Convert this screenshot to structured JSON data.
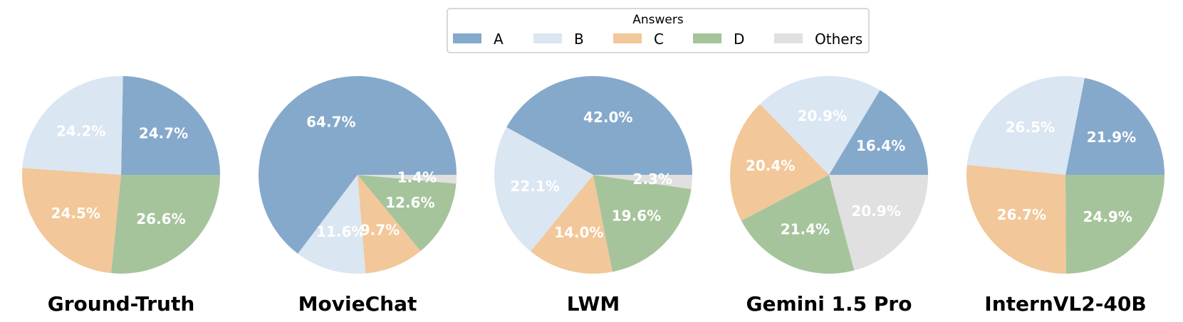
{
  "legend": {
    "title": "Answers",
    "entries": [
      {
        "label": "A",
        "color": "#85a9cb"
      },
      {
        "label": "B",
        "color": "#dae6f2"
      },
      {
        "label": "C",
        "color": "#f2c799"
      },
      {
        "label": "D",
        "color": "#a5c49c"
      },
      {
        "label": "Others",
        "color": "#e0e0e0"
      }
    ]
  },
  "chart_data": [
    {
      "type": "pie",
      "title": "Ground-Truth",
      "slices": [
        {
          "label": "A",
          "value": 24.7,
          "text": "24.7%"
        },
        {
          "label": "B",
          "value": 24.2,
          "text": "24.2%"
        },
        {
          "label": "C",
          "value": 24.5,
          "text": "24.5%"
        },
        {
          "label": "D",
          "value": 26.6,
          "text": "26.6%"
        }
      ]
    },
    {
      "type": "pie",
      "title": "MovieChat",
      "slices": [
        {
          "label": "A",
          "value": 64.7,
          "text": "64.7%"
        },
        {
          "label": "B",
          "value": 11.6,
          "text": "11.6%"
        },
        {
          "label": "C",
          "value": 9.7,
          "text": "9.7%"
        },
        {
          "label": "D",
          "value": 12.6,
          "text": "12.6%"
        },
        {
          "label": "Others",
          "value": 1.4,
          "text": "1.4%"
        }
      ]
    },
    {
      "type": "pie",
      "title": "LWM",
      "slices": [
        {
          "label": "A",
          "value": 42.0,
          "text": "42.0%"
        },
        {
          "label": "B",
          "value": 22.1,
          "text": "22.1%"
        },
        {
          "label": "C",
          "value": 14.0,
          "text": "14.0%"
        },
        {
          "label": "D",
          "value": 19.6,
          "text": "19.6%"
        },
        {
          "label": "Others",
          "value": 2.3,
          "text": "2.3%"
        }
      ]
    },
    {
      "type": "pie",
      "title": "Gemini 1.5 Pro",
      "slices": [
        {
          "label": "A",
          "value": 16.4,
          "text": "16.4%"
        },
        {
          "label": "B",
          "value": 20.9,
          "text": "20.9%"
        },
        {
          "label": "C",
          "value": 20.4,
          "text": "20.4%"
        },
        {
          "label": "D",
          "value": 21.4,
          "text": "21.4%"
        },
        {
          "label": "Others",
          "value": 20.9,
          "text": "20.9%"
        }
      ]
    },
    {
      "type": "pie",
      "title": "InternVL2-40B",
      "slices": [
        {
          "label": "A",
          "value": 21.9,
          "text": "21.9%"
        },
        {
          "label": "B",
          "value": 26.5,
          "text": "26.5%"
        },
        {
          "label": "C",
          "value": 26.7,
          "text": "26.7%"
        },
        {
          "label": "D",
          "value": 24.9,
          "text": "24.9%"
        }
      ]
    }
  ]
}
